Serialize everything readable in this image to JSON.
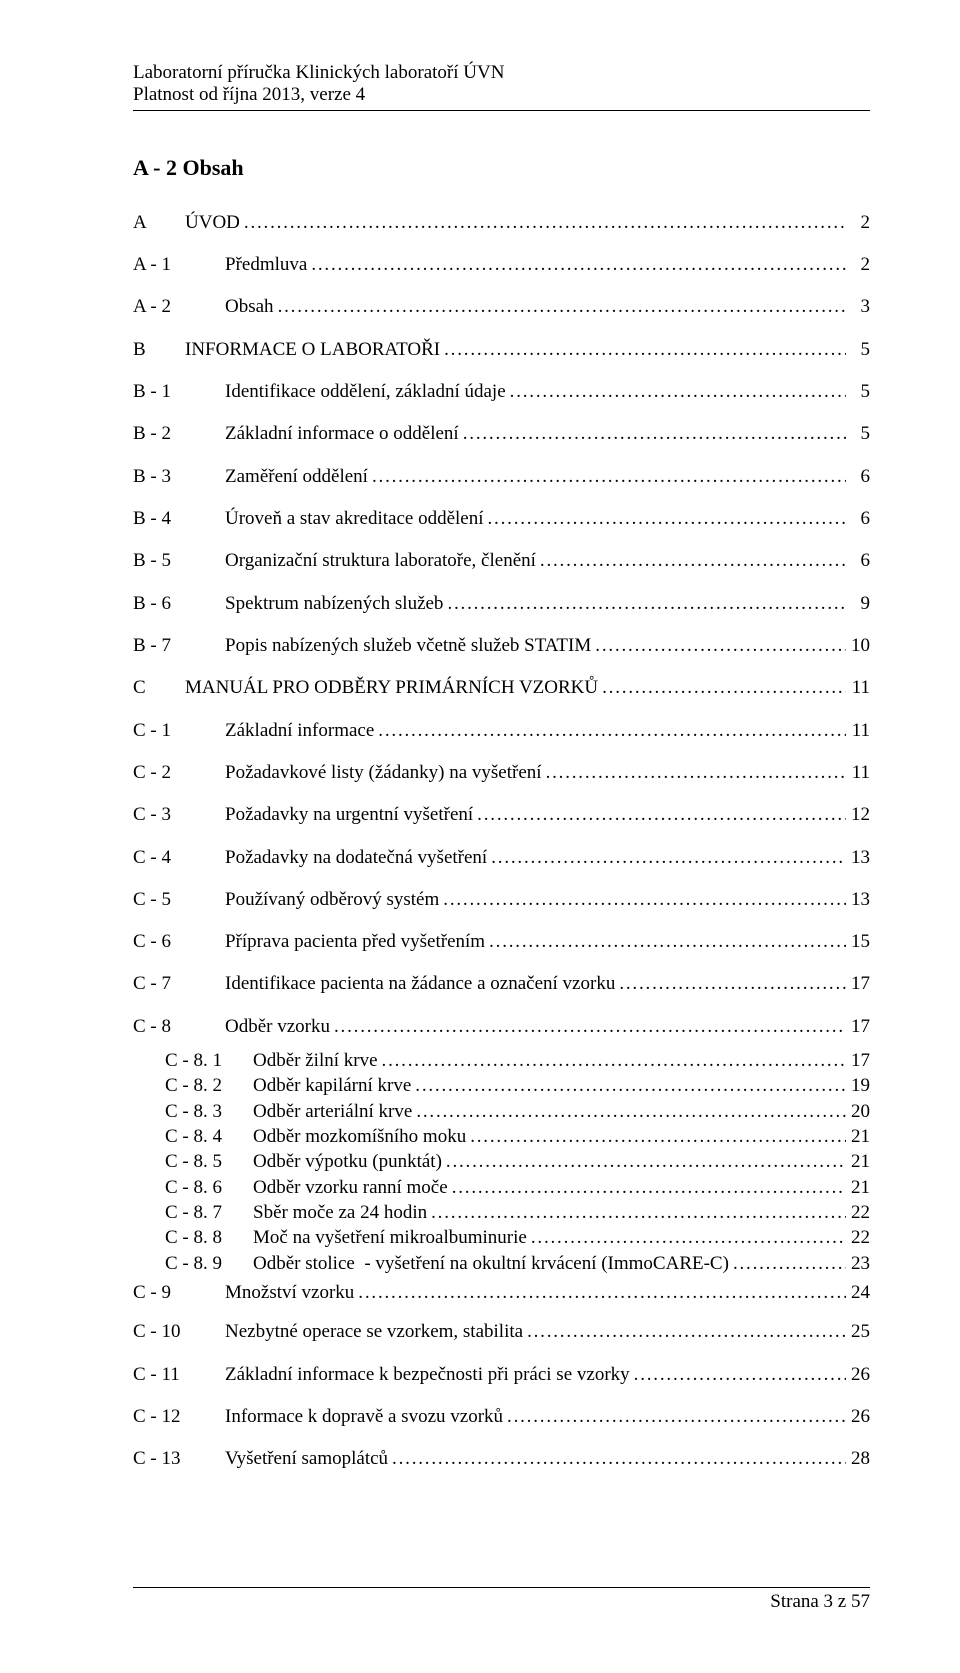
{
  "header": {
    "line1": "Laboratorní příručka Klinických laboratoří ÚVN",
    "line2": "Platnost od října 2013, verze 4"
  },
  "title": "A - 2   Obsah",
  "toc": [
    {
      "level": 0,
      "code": "A",
      "label": "ÚVOD",
      "page": "2",
      "gap": "gA"
    },
    {
      "level": 1,
      "code": "A - 1",
      "label": "Předmluva",
      "page": "2",
      "gap": "gB"
    },
    {
      "level": 1,
      "code": "A - 2",
      "label": "Obsah",
      "page": "3",
      "gap": "gB"
    },
    {
      "level": 0,
      "code": "B",
      "label": "INFORMACE O LABORATOŘI",
      "page": "5",
      "gap": "gB"
    },
    {
      "level": 1,
      "code": "B - 1",
      "label": "Identifikace oddělení, základní údaje",
      "page": "5",
      "gap": "gB"
    },
    {
      "level": 1,
      "code": "B - 2",
      "label": "Základní informace o oddělení",
      "page": "5",
      "gap": "gB"
    },
    {
      "level": 1,
      "code": "B - 3",
      "label": "Zaměření oddělení",
      "page": "6",
      "gap": "gB"
    },
    {
      "level": 1,
      "code": "B - 4",
      "label": "Úroveň a stav akreditace oddělení",
      "page": "6",
      "gap": "gB"
    },
    {
      "level": 1,
      "code": "B - 5",
      "label": "Organizační struktura laboratoře, členění",
      "page": "6",
      "gap": "gB"
    },
    {
      "level": 1,
      "code": "B - 6",
      "label": "Spektrum nabízených služeb",
      "page": "9",
      "gap": "gB"
    },
    {
      "level": 1,
      "code": "B - 7",
      "label": "Popis nabízených služeb včetně služeb STATIM",
      "page": "10",
      "gap": "gB"
    },
    {
      "level": 0,
      "code": "C",
      "label": "MANUÁL PRO ODBĚRY PRIMÁRNÍCH VZORKŮ",
      "page": "11",
      "gap": "gB"
    },
    {
      "level": 1,
      "code": "C - 1",
      "label": "Základní informace",
      "page": "11",
      "gap": "gB"
    },
    {
      "level": 1,
      "code": "C - 2",
      "label": "Požadavkové listy (žádanky) na vyšetření",
      "page": "11",
      "gap": "gB"
    },
    {
      "level": 1,
      "code": "C - 3",
      "label": "Požadavky na urgentní vyšetření",
      "page": "12",
      "gap": "gB"
    },
    {
      "level": 1,
      "code": "C - 4",
      "label": "Požadavky na dodatečná vyšetření",
      "page": "13",
      "gap": "gB"
    },
    {
      "level": 1,
      "code": "C - 5",
      "label": "Používaný odběrový systém",
      "page": "13",
      "gap": "gB"
    },
    {
      "level": 1,
      "code": "C - 6",
      "label": "Příprava pacienta před vyšetřením",
      "page": "15",
      "gap": "gB"
    },
    {
      "level": 1,
      "code": "C - 7",
      "label": "Identifikace pacienta na žádance a označení vzorku",
      "page": "17",
      "gap": "gB"
    },
    {
      "level": 1,
      "code": "C - 8",
      "label": "Odběr vzorku",
      "page": "17",
      "gap": "gB"
    },
    {
      "level": 2,
      "code": "C - 8. 1",
      "label": "Odběr žilní krve",
      "page": "17",
      "gap": "gD"
    },
    {
      "level": 2,
      "code": "C - 8. 2",
      "label": "Odběr kapilární krve",
      "page": "19"
    },
    {
      "level": 2,
      "code": "C - 8. 3",
      "label": "Odběr arteriální krve",
      "page": "20"
    },
    {
      "level": 2,
      "code": "C - 8. 4",
      "label": "Odběr mozkomíšního moku",
      "page": "21"
    },
    {
      "level": 2,
      "code": "C - 8. 5",
      "label": "Odběr výpotku (punktát)",
      "page": "21"
    },
    {
      "level": 2,
      "code": "C - 8. 6",
      "label": "Odběr vzorku ranní moče",
      "page": "21"
    },
    {
      "level": 2,
      "code": "C - 8. 7",
      "label": "Sběr moče za 24 hodin",
      "page": "22"
    },
    {
      "level": 2,
      "code": "C - 8. 8",
      "label": "Moč na vyšetření mikroalbuminurie",
      "page": "22"
    },
    {
      "level": 2,
      "code": "C - 8. 9",
      "label": "Odběr stolice  - vyšetření na okultní krvácení (ImmoCARE-C)",
      "page": "23"
    },
    {
      "level": 1,
      "code": "C - 9",
      "label": "Množství vzorku",
      "page": "24"
    },
    {
      "level": 1,
      "code": "C - 10",
      "label": "Nezbytné operace se vzorkem, stabilita",
      "page": "25",
      "gap": "gC"
    },
    {
      "level": 1,
      "code": "C - 11",
      "label": "Základní informace k bezpečnosti při práci se vzorky",
      "page": "26",
      "gap": "gB"
    },
    {
      "level": 1,
      "code": "C - 12",
      "label": "Informace k dopravě a svozu vzorků",
      "page": "26",
      "gap": "gB"
    },
    {
      "level": 1,
      "code": "C - 13",
      "label": "Vyšetření samoplátců",
      "page": "28",
      "gap": "gB"
    }
  ],
  "footer": {
    "text": "Strana 3 z 57"
  }
}
